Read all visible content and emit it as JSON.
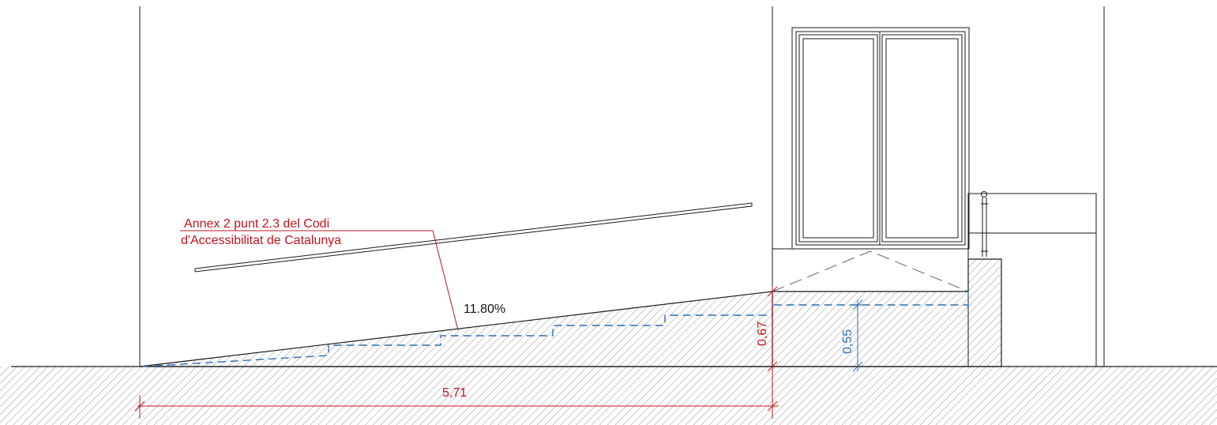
{
  "callout": {
    "line1": "Annex  2 punt 2.3 del Codi",
    "line2": "d'Accessibilitat de Catalunya",
    "color": "#c0141c"
  },
  "slope_label": "11.80%",
  "dimensions": {
    "ramp_length": "5,71",
    "total_height": "0,67",
    "inner_height": "0,55",
    "red_color": "#c0141c",
    "blue_color": "#2f6db4"
  }
}
